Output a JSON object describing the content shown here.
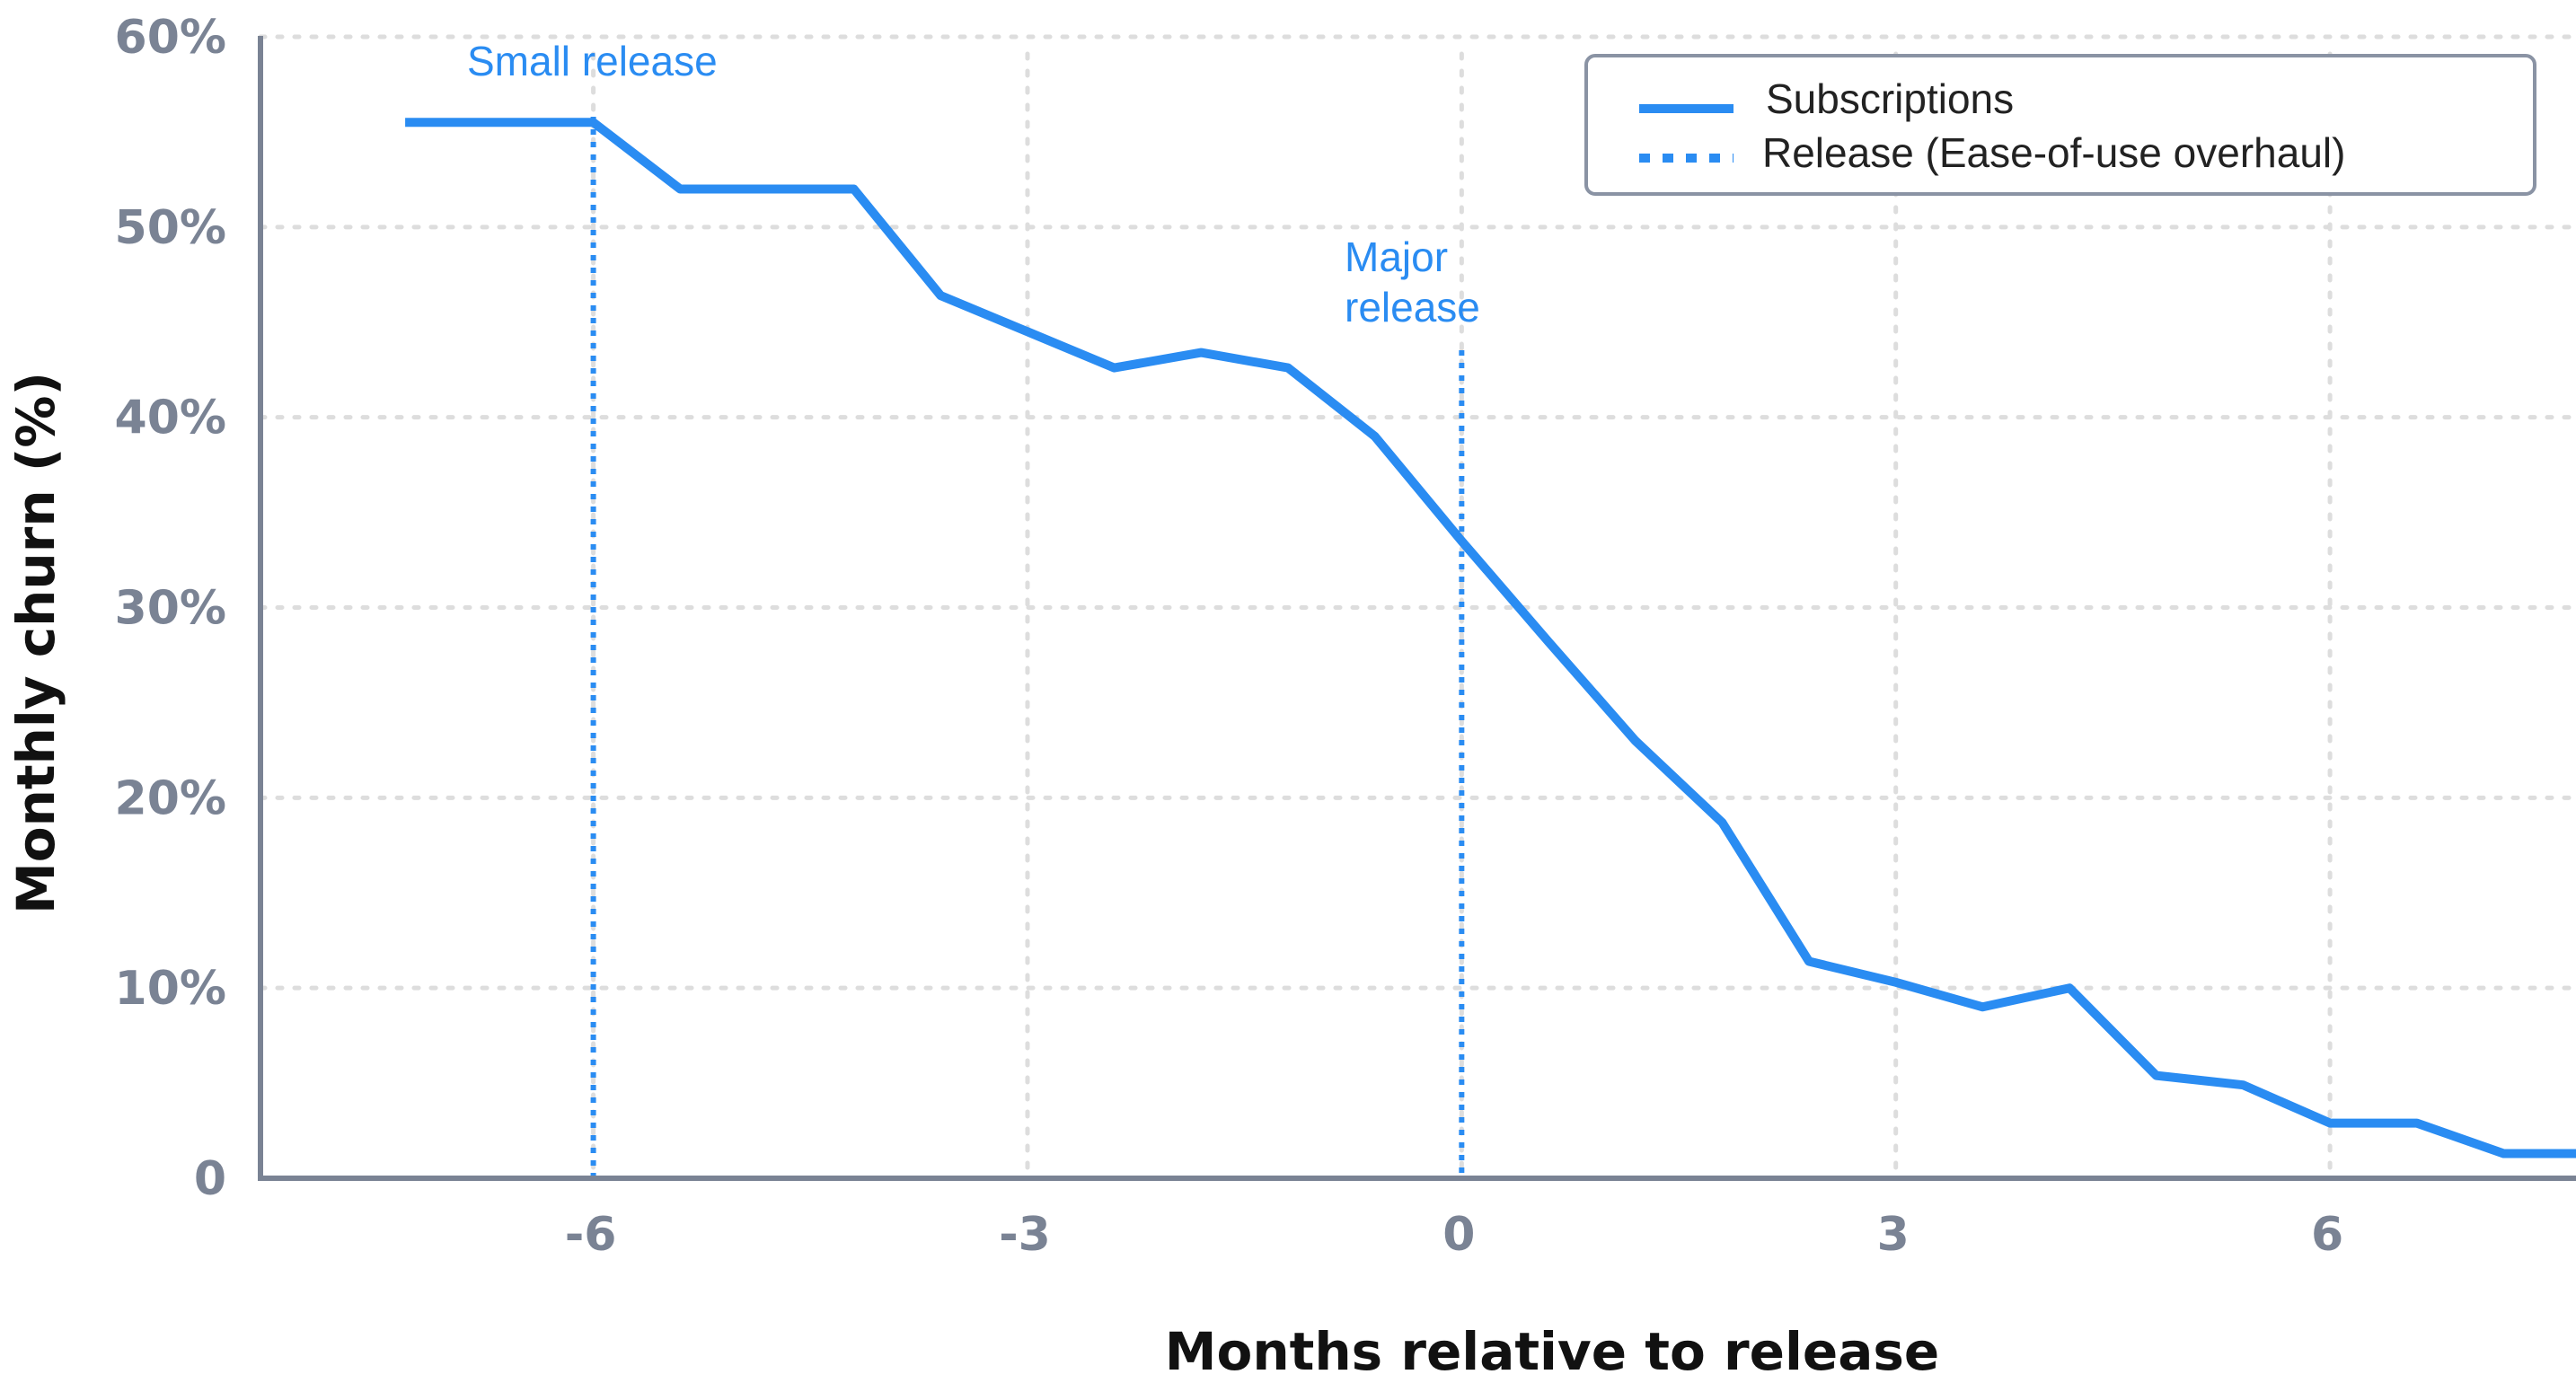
{
  "chart_data": {
    "type": "line",
    "title": "",
    "xlabel": "Months relative to release",
    "ylabel": "Monthly churn (%)",
    "xlim": [
      -8.3,
      7.7
    ],
    "ylim": [
      0,
      60
    ],
    "x_ticks": [
      -6,
      -3,
      0,
      3,
      6
    ],
    "x_tick_labels": [
      "-6",
      "-3",
      "0",
      "3",
      "6"
    ],
    "y_ticks": [
      0,
      10,
      20,
      30,
      40,
      50,
      60
    ],
    "y_tick_labels": [
      "0",
      "10%",
      "20%",
      "30%",
      "40%",
      "50%",
      "60%"
    ],
    "grid": true,
    "legend_placement": "top-right",
    "series": [
      {
        "name": "Subscriptions",
        "color": "#2a8cf2",
        "x": [
          -7.3,
          -6.0,
          -5.4,
          -4.2,
          -3.6,
          -2.4,
          -1.8,
          -1.2,
          -0.6,
          0.0,
          0.6,
          1.2,
          1.8,
          2.4,
          3.0,
          3.6,
          4.2,
          4.8,
          5.4,
          6.0,
          6.6,
          7.2,
          7.7
        ],
        "y": [
          55.5,
          55.5,
          52.0,
          52.0,
          46.4,
          42.6,
          43.4,
          42.6,
          39.0,
          33.5,
          28.2,
          23.0,
          18.7,
          11.4,
          10.3,
          9.0,
          10.0,
          5.4,
          4.9,
          2.9,
          2.9,
          1.3,
          1.3
        ]
      },
      {
        "name": "Release (Ease-of-use overhaul)",
        "color": "#2a8cf2",
        "style": "dotted",
        "x": [
          -6,
          0
        ]
      }
    ],
    "annotations": [
      {
        "text": "Small release",
        "x": -6
      },
      {
        "text": "Major release",
        "x": 0
      }
    ]
  },
  "legend": {
    "subscriptions": "Subscriptions",
    "release": "Release (Ease-of-use overhaul)"
  },
  "annotations": {
    "small_release": "Small release",
    "major_release_line1": "Major",
    "major_release_line2": "release"
  },
  "colors": {
    "line": "#2a8cf2",
    "axis": "#7a8394",
    "grid": "#dddddd",
    "legend_border": "#8a93a4"
  }
}
